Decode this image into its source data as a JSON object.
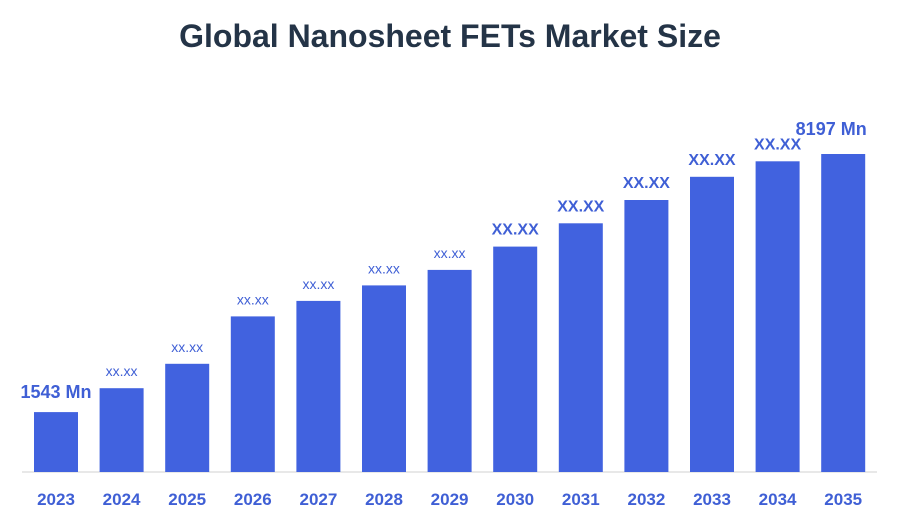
{
  "chart_data": {
    "type": "bar",
    "title": "Global Nanosheet FETs Market Size",
    "xlabel": "",
    "ylabel": "",
    "ylim": [
      0,
      10000
    ],
    "grid": false,
    "legend": "none",
    "bar_color": "#4162df",
    "label_color": "#3f5fd5",
    "title_color": "#243447",
    "categories": [
      "2023",
      "2024",
      "2025",
      "2026",
      "2027",
      "2028",
      "2029",
      "2030",
      "2031",
      "2032",
      "2033",
      "2034",
      "2035"
    ],
    "values": [
      1543,
      2160,
      2790,
      4010,
      4410,
      4810,
      5210,
      5810,
      6410,
      7010,
      7610,
      8010,
      8197
    ],
    "data_labels": [
      "1543 Mn",
      "xx.xx",
      "xx.xx",
      "xx.xx",
      "xx.xx",
      "xx.xx",
      "xx.xx",
      "XX.XX",
      "XX.XX",
      "XX.XX",
      "XX.XX",
      "XX.XX",
      "8197 Mn"
    ]
  }
}
